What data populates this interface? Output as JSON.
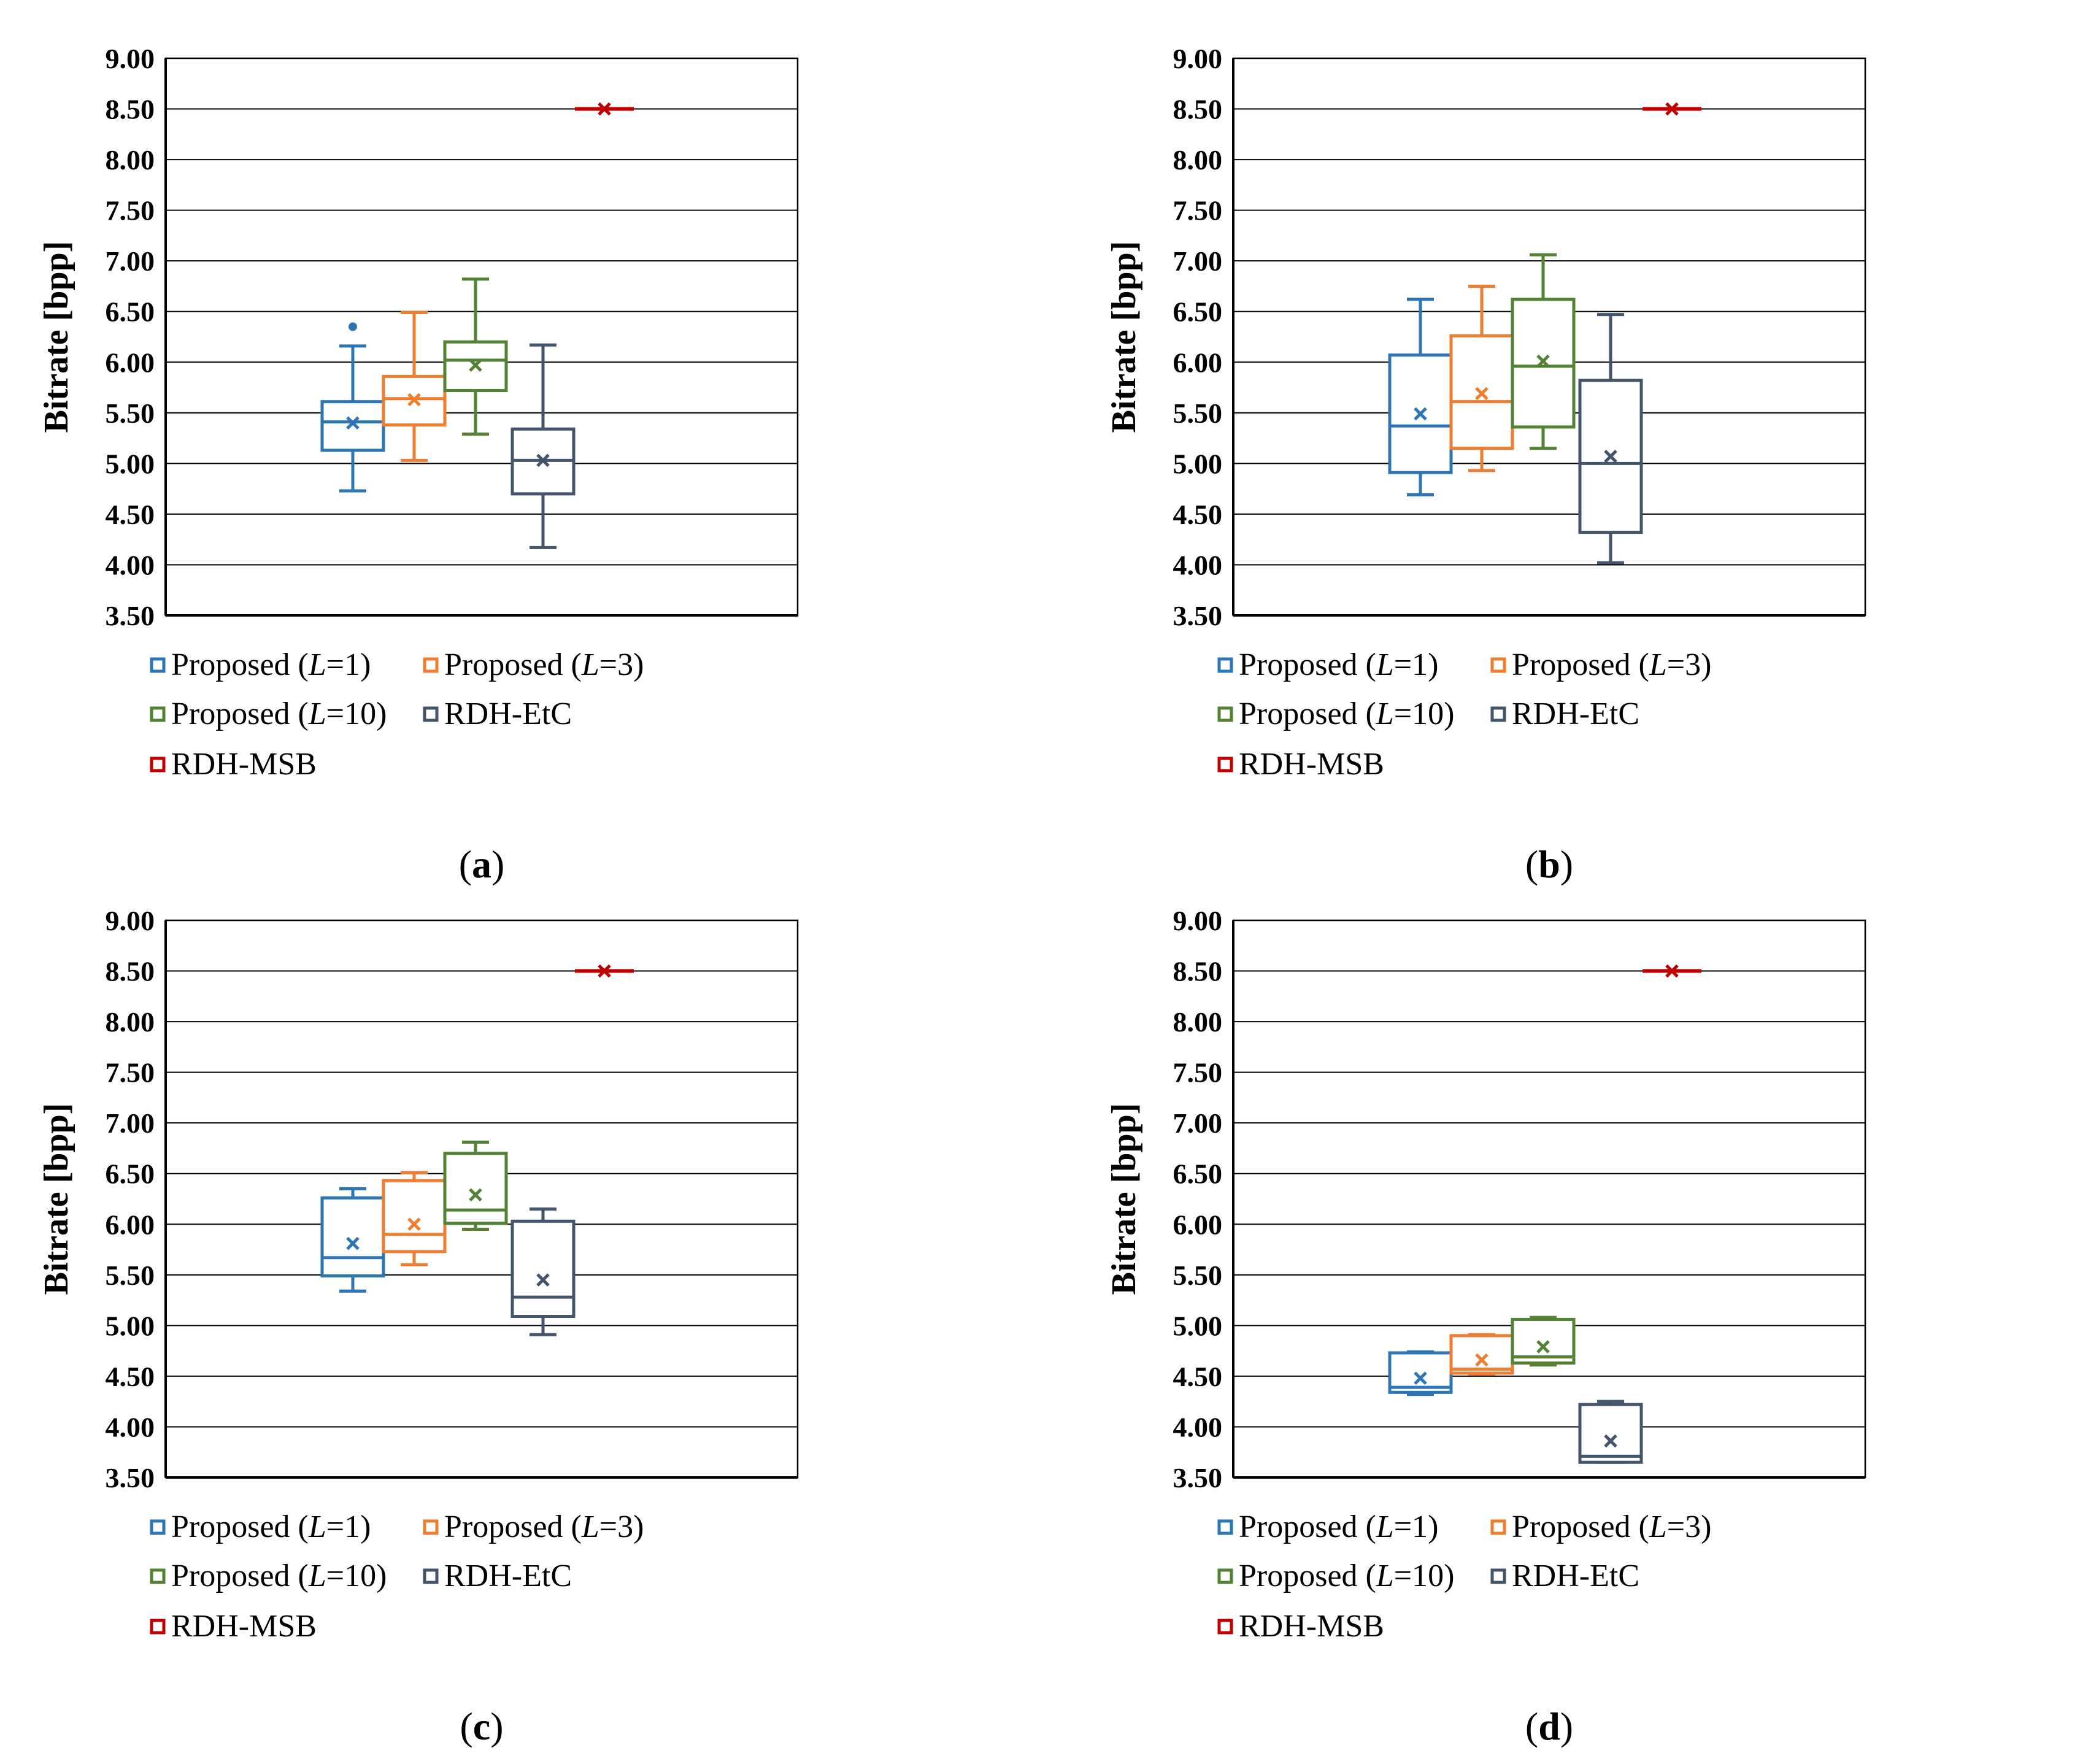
{
  "figure": {
    "ylabel": "Bitrate [bpp]",
    "ytick_labels": [
      "3.50",
      "4.00",
      "4.50",
      "5.00",
      "5.50",
      "6.00",
      "6.50",
      "7.00",
      "7.50",
      "8.00",
      "8.50",
      "9.00"
    ],
    "legend": [
      {
        "name": "Proposed (L=1)",
        "prefix": "Proposed (",
        "var": "L",
        "suffix": "=1)",
        "color": "#2e75b6"
      },
      {
        "name": "Proposed (L=3)",
        "prefix": "Proposed (",
        "var": "L",
        "suffix": "=3)",
        "color": "#ed7d31"
      },
      {
        "name": "Proposed (L=10)",
        "prefix": "Proposed (",
        "var": "L",
        "suffix": "=10)",
        "color": "#548235"
      },
      {
        "name": "RDH-EtC",
        "prefix": "RDH-EtC",
        "var": "",
        "suffix": "",
        "color": "#44546a"
      },
      {
        "name": "RDH-MSB",
        "prefix": "RDH-MSB",
        "var": "",
        "suffix": "",
        "color": "#c00000"
      }
    ]
  },
  "chart_data": [
    {
      "type": "box",
      "caption": "a",
      "ylabel": "Bitrate [bpp]",
      "ylim": [
        3.5,
        9.0
      ],
      "ytick_step": 0.5,
      "grid": true,
      "legend_position": "bottom",
      "series": [
        {
          "name": "Proposed (L=1)",
          "min": 4.73,
          "q1": 5.13,
          "median": 5.41,
          "q3": 5.61,
          "max": 6.16,
          "mean": 5.4,
          "outliers": [
            6.35
          ]
        },
        {
          "name": "Proposed (L=3)",
          "min": 5.03,
          "q1": 5.38,
          "median": 5.64,
          "q3": 5.86,
          "max": 6.49,
          "mean": 5.63,
          "outliers": []
        },
        {
          "name": "Proposed (L=10)",
          "min": 5.29,
          "q1": 5.72,
          "median": 6.02,
          "q3": 6.2,
          "max": 6.82,
          "mean": 5.97,
          "outliers": []
        },
        {
          "name": "RDH-EtC",
          "min": 4.17,
          "q1": 4.7,
          "median": 5.03,
          "q3": 5.34,
          "max": 6.17,
          "mean": 5.03,
          "outliers": []
        },
        {
          "name": "RDH-MSB",
          "min": 8.5,
          "q1": 8.5,
          "median": 8.5,
          "q3": 8.5,
          "max": 8.5,
          "mean": 8.5,
          "outliers": []
        }
      ]
    },
    {
      "type": "box",
      "caption": "b",
      "ylabel": "Bitrate [bpp]",
      "ylim": [
        3.5,
        9.0
      ],
      "ytick_step": 0.5,
      "grid": true,
      "legend_position": "bottom",
      "series": [
        {
          "name": "Proposed (L=1)",
          "min": 4.69,
          "q1": 4.91,
          "median": 5.37,
          "q3": 6.07,
          "max": 6.62,
          "mean": 5.49,
          "outliers": []
        },
        {
          "name": "Proposed (L=3)",
          "min": 4.93,
          "q1": 5.15,
          "median": 5.61,
          "q3": 6.26,
          "max": 6.75,
          "mean": 5.69,
          "outliers": []
        },
        {
          "name": "Proposed (L=10)",
          "min": 5.15,
          "q1": 5.36,
          "median": 5.96,
          "q3": 6.62,
          "max": 7.06,
          "mean": 6.01,
          "outliers": []
        },
        {
          "name": "RDH-EtC",
          "min": 4.02,
          "q1": 4.32,
          "median": 5.0,
          "q3": 5.82,
          "max": 6.47,
          "mean": 5.07,
          "outliers": []
        },
        {
          "name": "RDH-MSB",
          "min": 8.5,
          "q1": 8.5,
          "median": 8.5,
          "q3": 8.5,
          "max": 8.5,
          "mean": 8.5,
          "outliers": []
        }
      ]
    },
    {
      "type": "box",
      "caption": "c",
      "ylabel": "Bitrate [bpp]",
      "ylim": [
        3.5,
        9.0
      ],
      "ytick_step": 0.5,
      "grid": true,
      "legend_position": "bottom",
      "series": [
        {
          "name": "Proposed (L=1)",
          "min": 5.34,
          "q1": 5.49,
          "median": 5.67,
          "q3": 6.26,
          "max": 6.35,
          "mean": 5.81,
          "outliers": []
        },
        {
          "name": "Proposed (L=3)",
          "min": 5.6,
          "q1": 5.73,
          "median": 5.9,
          "q3": 6.43,
          "max": 6.51,
          "mean": 6.0,
          "outliers": []
        },
        {
          "name": "Proposed (L=10)",
          "min": 5.95,
          "q1": 6.01,
          "median": 6.14,
          "q3": 6.7,
          "max": 6.81,
          "mean": 6.29,
          "outliers": []
        },
        {
          "name": "RDH-EtC",
          "min": 4.91,
          "q1": 5.09,
          "median": 5.28,
          "q3": 6.03,
          "max": 6.15,
          "mean": 5.45,
          "outliers": []
        },
        {
          "name": "RDH-MSB",
          "min": 8.5,
          "q1": 8.5,
          "median": 8.5,
          "q3": 8.5,
          "max": 8.5,
          "mean": 8.5,
          "outliers": []
        }
      ]
    },
    {
      "type": "box",
      "caption": "d",
      "ylabel": "Bitrate [bpp]",
      "ylim": [
        3.5,
        9.0
      ],
      "ytick_step": 0.5,
      "grid": true,
      "legend_position": "bottom",
      "series": [
        {
          "name": "Proposed (L=1)",
          "min": 4.32,
          "q1": 4.34,
          "median": 4.39,
          "q3": 4.73,
          "max": 4.74,
          "mean": 4.48,
          "outliers": []
        },
        {
          "name": "Proposed (L=3)",
          "min": 4.52,
          "q1": 4.53,
          "median": 4.57,
          "q3": 4.9,
          "max": 4.91,
          "mean": 4.66,
          "outliers": []
        },
        {
          "name": "Proposed (L=10)",
          "min": 4.61,
          "q1": 4.63,
          "median": 4.69,
          "q3": 5.06,
          "max": 5.08,
          "mean": 4.79,
          "outliers": []
        },
        {
          "name": "RDH-EtC",
          "min": 3.65,
          "q1": 3.65,
          "median": 3.71,
          "q3": 4.22,
          "max": 4.25,
          "mean": 3.86,
          "outliers": []
        },
        {
          "name": "RDH-MSB",
          "min": 8.5,
          "q1": 8.5,
          "median": 8.5,
          "q3": 8.5,
          "max": 8.5,
          "mean": 8.5,
          "outliers": []
        }
      ]
    }
  ]
}
